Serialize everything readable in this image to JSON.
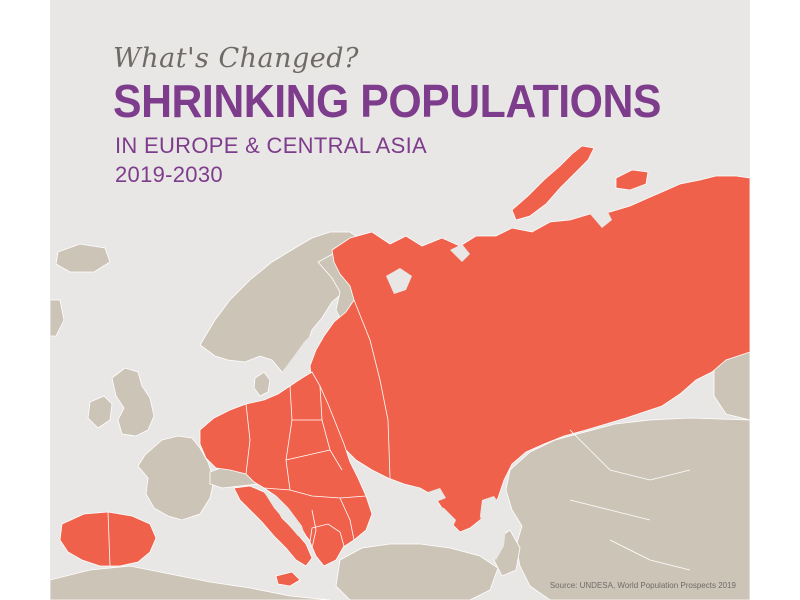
{
  "infographic": {
    "kicker": "What's Changed?",
    "title": "SHRINKING POPULATIONS",
    "subtitle": "IN EUROPE & CENTRAL ASIA",
    "period": "2019-2030",
    "source": "Source: UNDESA, World Population Prospects 2019"
  },
  "map_colors": {
    "background": "#e9e7e5",
    "land_other": "#cdc4b8",
    "shrinking": "#f0614c",
    "water": "#e9e7e5",
    "border": "#ffffff"
  }
}
